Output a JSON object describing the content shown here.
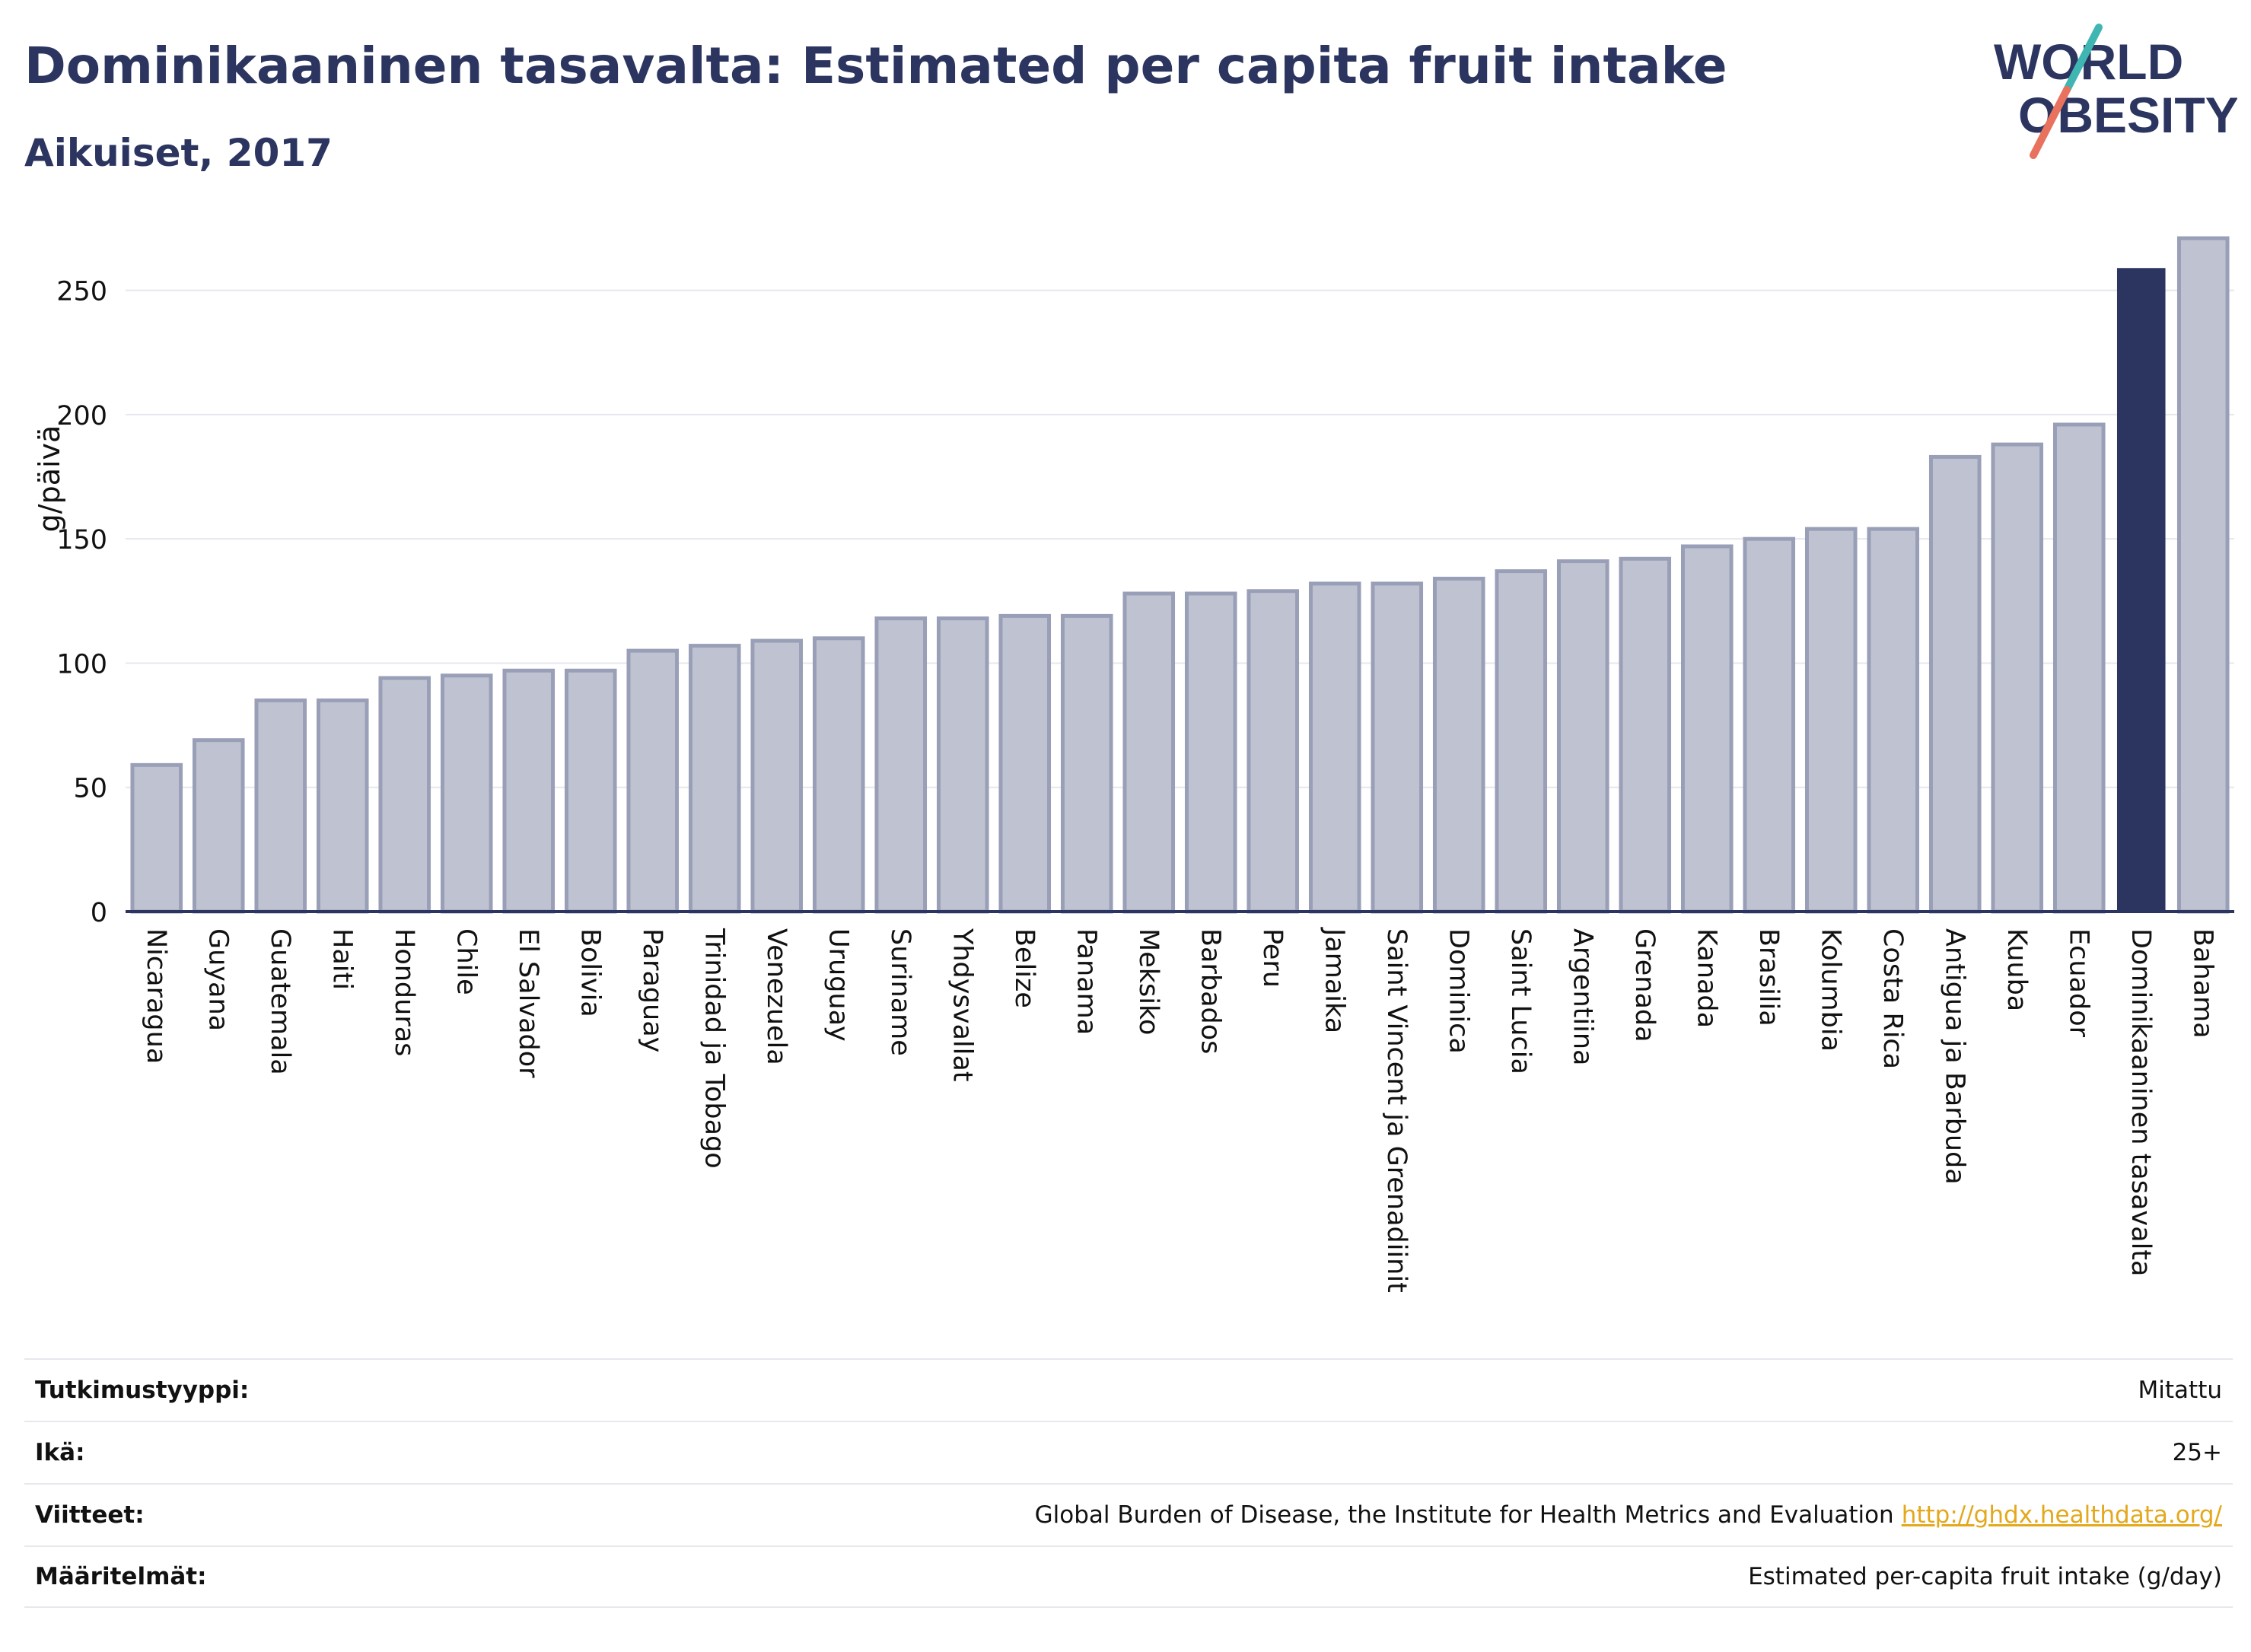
{
  "title": "Dominikaaninen tasavalta: Estimated per capita fruit intake",
  "subtitle": "Aikuiset, 2017",
  "logo": {
    "line1": "WORLD",
    "line2": "OBESITY"
  },
  "colors": {
    "bar": "#bfc3d1",
    "bar_stroke": "#9a9fb8",
    "highlight": "#2b3560",
    "grid": "#e6e8ee",
    "axis": "#2b3560"
  },
  "chart_data": {
    "type": "bar",
    "ylabel": "g/päivä",
    "ylim": [
      0,
      275
    ],
    "yticks": [
      0,
      50,
      100,
      150,
      200,
      250
    ],
    "grid": true,
    "highlight": "Dominikaaninen tasavalta",
    "categories": [
      "Nicaragua",
      "Guyana",
      "Guatemala",
      "Haiti",
      "Honduras",
      "Chile",
      "El Salvador",
      "Bolivia",
      "Paraguay",
      "Trinidad ja Tobago",
      "Venezuela",
      "Uruguay",
      "Suriname",
      "Yhdysvallat",
      "Belize",
      "Panama",
      "Meksiko",
      "Barbados",
      "Peru",
      "Jamaika",
      "Saint Vincent ja Grenadiinit",
      "Dominica",
      "Saint Lucia",
      "Argentiina",
      "Grenada",
      "Kanada",
      "Brasilia",
      "Kolumbia",
      "Costa Rica",
      "Antigua ja Barbuda",
      "Kuuba",
      "Ecuador",
      "Dominikaaninen tasavalta",
      "Bahama"
    ],
    "values": [
      59,
      69,
      85,
      85,
      94,
      95,
      97,
      97,
      105,
      107,
      109,
      110,
      118,
      118,
      119,
      119,
      128,
      128,
      129,
      132,
      132,
      134,
      137,
      141,
      142,
      147,
      150,
      154,
      154,
      183,
      188,
      196,
      259,
      271
    ]
  },
  "footer": [
    {
      "label": "Tutkimustyyppi:",
      "value": "Mitattu"
    },
    {
      "label": "Ikä:",
      "value": "25+"
    },
    {
      "label": "Viitteet:",
      "value": "Global Burden of Disease, the Institute for Health Metrics and Evaluation",
      "link": "http://ghdx.healthdata.org/"
    },
    {
      "label": "Määritelmät:",
      "value": "Estimated per-capita fruit intake (g/day)"
    }
  ]
}
